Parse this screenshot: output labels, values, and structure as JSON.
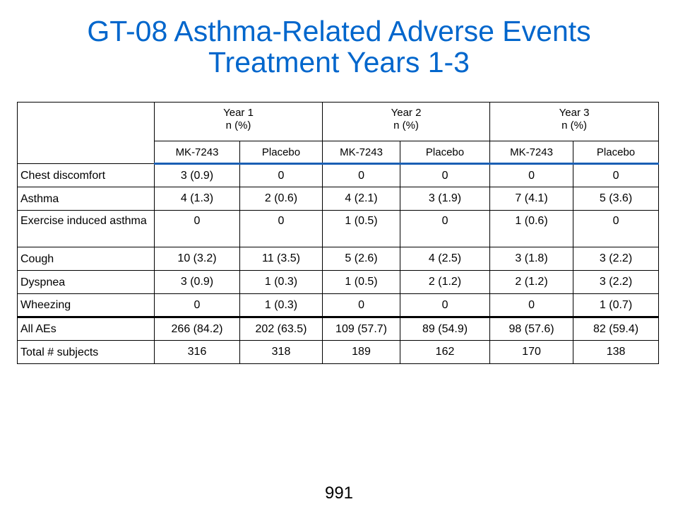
{
  "title": {
    "line1": "GT-08 Asthma-Related Adverse Events",
    "line2": "Treatment Years 1-3"
  },
  "colors": {
    "title": "#0066cc",
    "header_rule": "#1a5fb4",
    "text": "#000000"
  },
  "table": {
    "years": [
      {
        "label": "Year 1",
        "unit": "n (%)"
      },
      {
        "label": "Year 2",
        "unit": "n (%)"
      },
      {
        "label": "Year 3",
        "unit": "n (%)"
      }
    ],
    "arms": [
      "MK-7243",
      "Placebo",
      "MK-7243",
      "Placebo",
      "MK-7243",
      "Placebo"
    ],
    "rows": [
      {
        "label": "Chest discomfort",
        "values": [
          "3 (0.9)",
          "0",
          "0",
          "0",
          "0",
          "0"
        ]
      },
      {
        "label": "Asthma",
        "values": [
          "4 (1.3)",
          "2 (0.6)",
          "4 (2.1)",
          "3 (1.9)",
          "7 (4.1)",
          "5 (3.6)"
        ]
      },
      {
        "label": "Exercise induced asthma",
        "values": [
          "0",
          "0",
          "1 (0.5)",
          "0",
          "1 (0.6)",
          "0"
        ]
      },
      {
        "label": "Cough",
        "values": [
          "10 (3.2)",
          "11 (3.5)",
          "5 (2.6)",
          "4 (2.5)",
          "3 (1.8)",
          "3 (2.2)"
        ]
      },
      {
        "label": "Dyspnea",
        "values": [
          "3 (0.9)",
          "1 (0.3)",
          "1 (0.5)",
          "2 (1.2)",
          "2 (1.2)",
          "3 (2.2)"
        ]
      },
      {
        "label": "Wheezing",
        "values": [
          "0",
          "1 (0.3)",
          "0",
          "0",
          "0",
          "1 (0.7)"
        ]
      },
      {
        "label": "All AEs",
        "values": [
          "266 (84.2)",
          "202 (63.5)",
          "109 (57.7)",
          "89 (54.9)",
          "98 (57.6)",
          "82 (59.4)"
        ]
      },
      {
        "label": "Total # subjects",
        "values": [
          "316",
          "318",
          "189",
          "162",
          "170",
          "138"
        ]
      }
    ]
  },
  "page_number": "991"
}
